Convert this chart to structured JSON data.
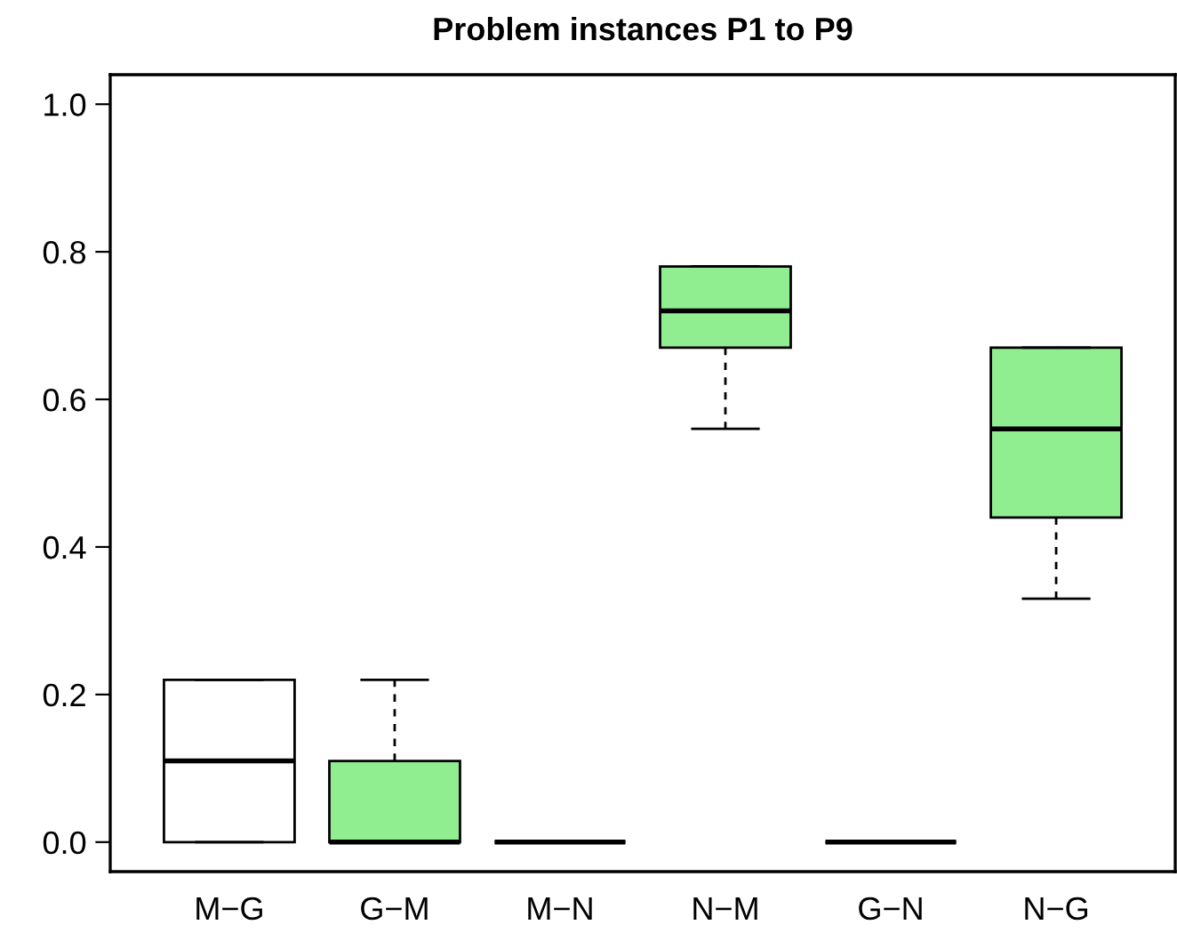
{
  "chart_data": {
    "type": "box",
    "title": "Problem instances P1 to P9",
    "categories": [
      "M−G",
      "G−M",
      "M−N",
      "N−M",
      "G−N",
      "N−G"
    ],
    "colors": [
      "#ffffff",
      "#90ee90",
      "#000000",
      "#90ee90",
      "#000000",
      "#90ee90"
    ],
    "boxes": [
      {
        "low": 0,
        "q1": 0,
        "median": 0.11,
        "q3": 0.22,
        "high": 0.22
      },
      {
        "low": 0,
        "q1": 0,
        "median": 0,
        "q3": 0.11,
        "high": 0.22
      },
      {
        "low": 0,
        "q1": 0,
        "median": 0,
        "q3": 0,
        "high": 0
      },
      {
        "low": 0.56,
        "q1": 0.67,
        "median": 0.72,
        "q3": 0.78,
        "high": 0.78
      },
      {
        "low": 0,
        "q1": 0,
        "median": 0,
        "q3": 0,
        "high": 0
      },
      {
        "low": 0.33,
        "q1": 0.44,
        "median": 0.56,
        "q3": 0.67,
        "high": 0.67
      }
    ],
    "ylim": [
      -0.04,
      1.04
    ],
    "yticks": [
      {
        "value": 0,
        "label": "0.0"
      },
      {
        "value": 0.2,
        "label": "0.2"
      },
      {
        "value": 0.4,
        "label": "0.4"
      },
      {
        "value": 0.6,
        "label": "0.6"
      },
      {
        "value": 0.8,
        "label": "0.8"
      },
      {
        "value": 1.0,
        "label": "1.0"
      }
    ],
    "grid": false
  }
}
